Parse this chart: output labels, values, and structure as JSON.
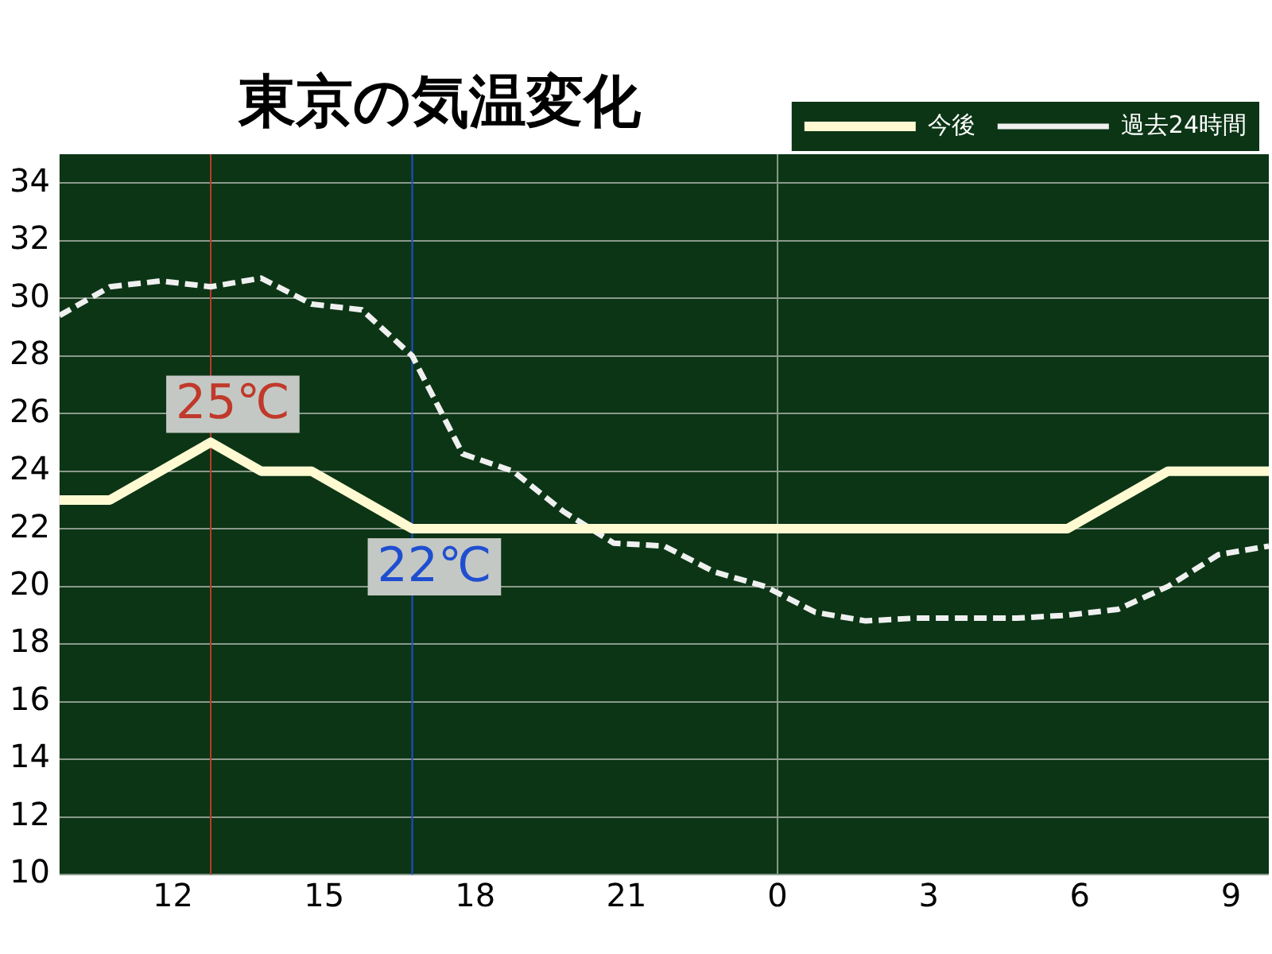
{
  "chart_data": {
    "type": "line",
    "title": "東京の気温変化",
    "x": [
      "--01-01T09:45",
      "--01-01T10:45",
      "--01-01T11:45",
      "--01-01T12:45",
      "--01-01T13:45",
      "--01-01T14:45",
      "--01-01T15:45",
      "--01-01T16:45",
      "--01-01T17:45",
      "--01-01T18:45",
      "--01-01T19:45",
      "--01-01T20:45",
      "--01-01T21:45",
      "--01-01T22:45",
      "--01-01T23:45",
      "--01-02T00:45",
      "--01-02T01:45",
      "--01-02T02:45",
      "--01-02T03:45",
      "--01-02T04:45",
      "--01-02T05:45",
      "--01-02T06:45",
      "--01-02T07:45",
      "--01-02T08:45",
      "--01-02T09:45"
    ],
    "series": [
      {
        "name": "今後",
        "color": "#fffad2",
        "line_style": "solid",
        "x": [
          "--01-01T09:45",
          "--01-01T10:45",
          "--01-01T12:45",
          "--01-01T13:45",
          "--01-01T14:45",
          "--01-01T16:45",
          "--01-02T05:45",
          "--01-02T07:45",
          "--01-02T09:45"
        ],
        "values": [
          23,
          23,
          25,
          24,
          24,
          22,
          22,
          24,
          24
        ]
      },
      {
        "name": "過去24時間",
        "color": "#f0f0f0",
        "line_style": "dashed",
        "values": [
          29.4,
          30.4,
          30.6,
          30.4,
          30.7,
          29.8,
          29.6,
          28,
          24.6,
          24,
          22.6,
          21.5,
          21.4,
          20.5,
          20,
          19.1,
          18.8,
          18.9,
          18.9,
          18.9,
          19,
          19.2,
          20,
          21.1,
          21.4
        ]
      }
    ],
    "xlim": [
      "--01-01T09:45",
      "--01-02T09:45"
    ],
    "xticks": [
      {
        "value": "--01-01T12:00",
        "label": "12"
      },
      {
        "value": "--01-01T15:00",
        "label": "15"
      },
      {
        "value": "--01-01T18:00",
        "label": "18"
      },
      {
        "value": "--01-01T21:00",
        "label": "21"
      },
      {
        "value": "--01-02T00:00",
        "label": "0"
      },
      {
        "value": "--01-02T03:00",
        "label": "3"
      },
      {
        "value": "--01-02T06:00",
        "label": "6"
      },
      {
        "value": "--01-02T09:00",
        "label": "9"
      }
    ],
    "ylim": [
      10,
      35
    ],
    "yticks": [
      10,
      12,
      14,
      16,
      18,
      20,
      22,
      24,
      26,
      28,
      30,
      32,
      34
    ],
    "grid": "y",
    "legend": "top right",
    "marker": "none",
    "ref_lines": [
      {
        "axis": "x",
        "value": "--01-01T12:45",
        "color": "#c0392b"
      },
      {
        "axis": "x",
        "value": "--01-01T16:45",
        "color": "#1f4fd0"
      },
      {
        "axis": "x",
        "value": "--01-02T00:00",
        "color": "#8a9a8a"
      }
    ],
    "annotations": [
      {
        "text": "25℃",
        "x": "--01-01T12:45",
        "y": 25
      },
      {
        "text": "22℃",
        "x": "--01-01T16:45",
        "y": 22
      }
    ]
  }
}
